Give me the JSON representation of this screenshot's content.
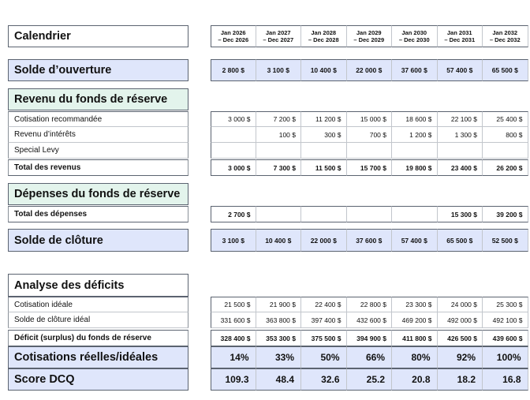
{
  "calendar": {
    "label": "Calendrier",
    "periods": [
      {
        "top": "Jan 2026",
        "bottom": "– Dec 2026"
      },
      {
        "top": "Jan 2027",
        "bottom": "– Dec 2027"
      },
      {
        "top": "Jan 2028",
        "bottom": "– Dec 2028"
      },
      {
        "top": "Jan 2029",
        "bottom": "– Dec 2029"
      },
      {
        "top": "Jan 2030",
        "bottom": "– Dec 2030"
      },
      {
        "top": "Jan 2031",
        "bottom": "– Dec 2031"
      },
      {
        "top": "Jan 2032",
        "bottom": "– Dec 2032"
      }
    ]
  },
  "opening": {
    "label": "Solde d’ouverture",
    "values": [
      "2 800 $",
      "3 100 $",
      "10 400 $",
      "22 000 $",
      "37 600 $",
      "57 400 $",
      "65 500 $"
    ]
  },
  "revenue": {
    "title": "Revenu du fonds de réserve",
    "rows": [
      {
        "label": "Cotisation recommandée",
        "values": [
          "3 000 $",
          "7 200 $",
          "11 200 $",
          "15 000 $",
          "18 600 $",
          "22 100 $",
          "25 400 $"
        ]
      },
      {
        "label": "Revenu d’intérêts",
        "values": [
          "",
          "100 $",
          "300 $",
          "700 $",
          "1 200 $",
          "1 300 $",
          "800 $"
        ]
      },
      {
        "label": "Special Levy",
        "values": [
          "",
          "",
          "",
          "",
          "",
          "",
          ""
        ]
      }
    ],
    "total": {
      "label": "Total des revenus",
      "values": [
        "3 000 $",
        "7 300 $",
        "11 500 $",
        "15 700 $",
        "19 800 $",
        "23 400 $",
        "26 200 $"
      ]
    }
  },
  "expenses": {
    "title": "Dépenses du fonds de réserve",
    "total": {
      "label": "Total des dépenses",
      "values": [
        "2 700 $",
        "",
        "",
        "",
        "",
        "15 300 $",
        "39 200 $"
      ]
    }
  },
  "closing": {
    "label": "Solde de clôture",
    "values": [
      "3 100 $",
      "10 400 $",
      "22 000 $",
      "37 600 $",
      "57 400 $",
      "65 500 $",
      "52 500 $"
    ]
  },
  "deficit": {
    "title": "Analyse des déficits",
    "rows": [
      {
        "label": "Cotisation idéale",
        "values": [
          "21 500 $",
          "21 900 $",
          "22 400 $",
          "22 800 $",
          "23 300 $",
          "24 000 $",
          "25 300 $"
        ]
      },
      {
        "label": "Solde de clôture idéal",
        "values": [
          "331 600 $",
          "363 800 $",
          "397 400 $",
          "432 600 $",
          "469 200 $",
          "492 000 $",
          "492 100 $"
        ]
      }
    ],
    "total": {
      "label": "Déficit (surplus) du fonds de réserve",
      "values": [
        "328 400 $",
        "353 300 $",
        "375 500 $",
        "394 900 $",
        "411 800 $",
        "426 500 $",
        "439 600 $"
      ]
    }
  },
  "ratio": {
    "label": "Cotisations réelles/idéales",
    "values": [
      "14%",
      "33%",
      "50%",
      "66%",
      "80%",
      "92%",
      "100%"
    ]
  },
  "score": {
    "label": "Score DCQ",
    "values": [
      "109.3",
      "48.4",
      "32.6",
      "25.2",
      "20.8",
      "18.2",
      "16.8"
    ]
  }
}
